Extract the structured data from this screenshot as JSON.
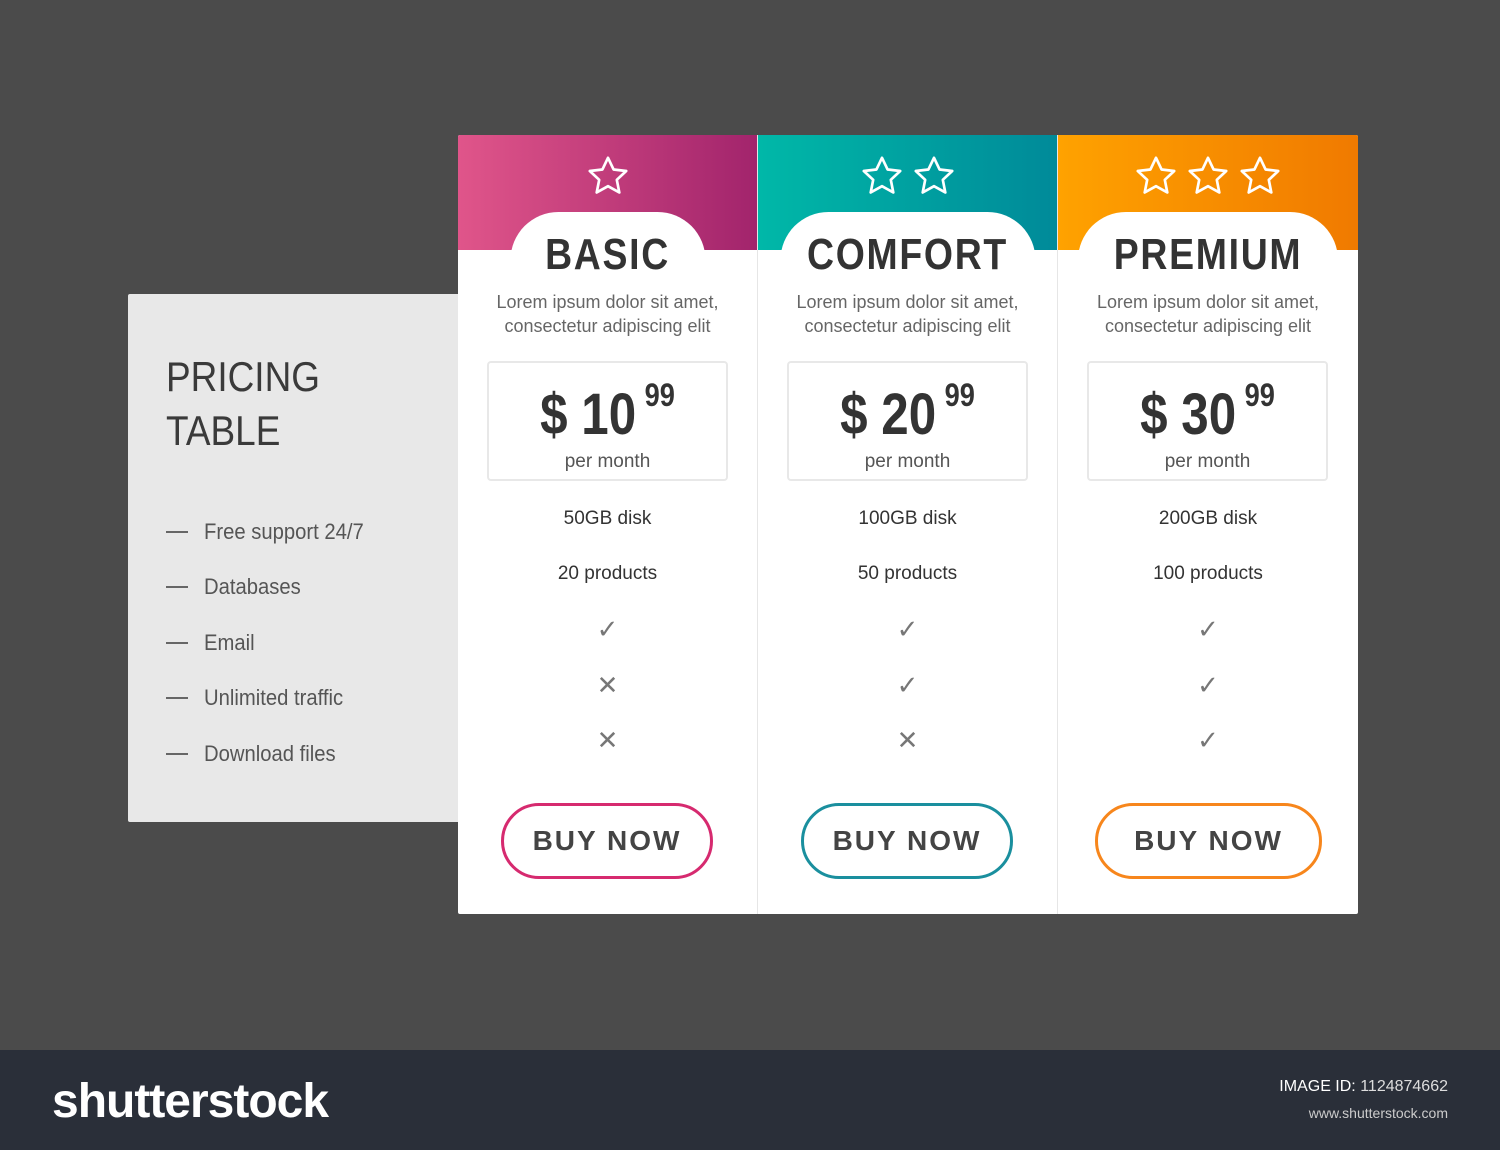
{
  "sidebar": {
    "title_line1": "PRICING",
    "title_line2": "TABLE",
    "features": [
      "Free support 24/7",
      "Databases",
      "Email",
      "Unlimited traffic",
      "Download files"
    ]
  },
  "plans": [
    {
      "name": "BASIC",
      "stars": 1,
      "desc1": "Lorem ipsum dolor sit amet,",
      "desc2": "consectetur adipiscing elit",
      "currency": "$",
      "price": "10",
      "cents": "99",
      "period": "per month",
      "rows": [
        "50GB disk",
        "20 products",
        "✓",
        "✕",
        "✕"
      ],
      "button": "BUY NOW",
      "color": "#d62a6f"
    },
    {
      "name": "COMFORT",
      "stars": 2,
      "desc1": "Lorem ipsum dolor sit amet,",
      "desc2": "consectetur adipiscing elit",
      "currency": "$",
      "price": "20",
      "cents": "99",
      "period": "per month",
      "rows": [
        "100GB disk",
        "50 products",
        "✓",
        "✓",
        "✕"
      ],
      "button": "BUY NOW",
      "color": "#1a8f9e"
    },
    {
      "name": "PREMIUM",
      "stars": 3,
      "desc1": "Lorem ipsum dolor sit amet,",
      "desc2": "consectetur adipiscing elit",
      "currency": "$",
      "price": "30",
      "cents": "99",
      "period": "per month",
      "rows": [
        "200GB disk",
        "100 products",
        "✓",
        "✓",
        "✓"
      ],
      "button": "BUY NOW",
      "color": "#f7861c"
    }
  ],
  "footer": {
    "logo": "shutterstock",
    "image_id_label": "IMAGE ID:",
    "image_id": "1124874662",
    "url": "www.shutterstock.com"
  }
}
